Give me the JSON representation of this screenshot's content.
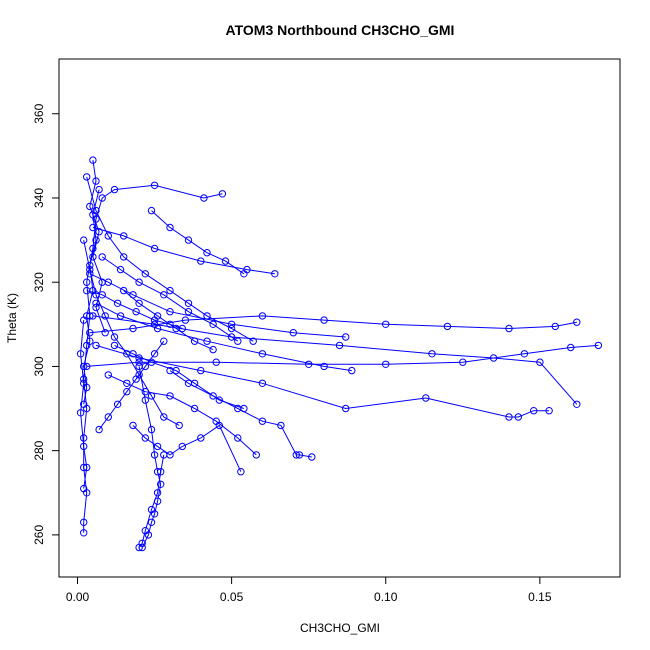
{
  "chart_data": {
    "type": "scatter",
    "mode": "lines+markers",
    "title": "ATOM3 Northbound CH3CHO_GMI",
    "xlabel": "CH3CHO_GMI",
    "ylabel": "Theta (K)",
    "xlim": [
      -0.006,
      0.176
    ],
    "ylim": [
      250,
      373
    ],
    "xticks": [
      0.0,
      0.05,
      0.1,
      0.15
    ],
    "xtick_labels": [
      "0.00",
      "0.05",
      "0.10",
      "0.15"
    ],
    "yticks": [
      260,
      280,
      300,
      320,
      340,
      360
    ],
    "ytick_labels": [
      "260",
      "280",
      "300",
      "320",
      "340",
      "360"
    ],
    "grid": false,
    "legend": "none",
    "marker": "open-circle",
    "series_color": "#0000ff",
    "series": [
      {
        "x": [
          0.002,
          0.002,
          0.003,
          0.002,
          0.002,
          0.003,
          0.002,
          0.003,
          0.004,
          0.003,
          0.005,
          0.006,
          0.008,
          0.012,
          0.025,
          0.041,
          0.047
        ],
        "y": [
          260.5,
          263,
          270,
          276,
          283,
          290,
          297,
          305,
          312,
          320,
          328,
          335,
          340,
          342,
          343,
          340,
          341
        ]
      },
      {
        "x": [
          0.003,
          0.006,
          0.01,
          0.015,
          0.022,
          0.03,
          0.036,
          0.042,
          0.05,
          0.057
        ],
        "y": [
          345,
          337,
          331,
          326,
          322,
          318,
          315,
          312,
          309,
          306
        ]
      },
      {
        "x": [
          0.004,
          0.018,
          0.035,
          0.06,
          0.08,
          0.1,
          0.12,
          0.14,
          0.155,
          0.162
        ],
        "y": [
          308,
          309,
          311,
          312,
          311,
          310,
          309.5,
          309,
          309.5,
          310.5
        ]
      },
      {
        "x": [
          0.003,
          0.02,
          0.045,
          0.075,
          0.1,
          0.125,
          0.145,
          0.16,
          0.169
        ],
        "y": [
          300,
          301,
          301,
          300.5,
          300.5,
          301,
          303,
          304.5,
          305
        ]
      },
      {
        "x": [
          0.005,
          0.025,
          0.05,
          0.085,
          0.115,
          0.135,
          0.15,
          0.162
        ],
        "y": [
          312,
          310,
          307,
          305,
          303,
          302,
          301,
          291
        ]
      },
      {
        "x": [
          0.006,
          0.02,
          0.04,
          0.06,
          0.087,
          0.113,
          0.14,
          0.143,
          0.148,
          0.153
        ],
        "y": [
          305,
          302,
          299,
          296,
          290,
          292.5,
          288,
          288,
          289.5,
          289.5
        ]
      },
      {
        "x": [
          0.002,
          0.004,
          0.006,
          0.009,
          0.012,
          0.016,
          0.02,
          0.024,
          0.028,
          0.033
        ],
        "y": [
          330,
          323,
          317,
          312,
          307,
          303,
          298,
          293,
          288,
          286
        ]
      },
      {
        "x": [
          0.02,
          0.022,
          0.024,
          0.025,
          0.026,
          0.027,
          0.026,
          0.025,
          0.024,
          0.023,
          0.021
        ],
        "y": [
          300,
          292,
          285,
          279,
          275,
          272,
          268,
          265,
          263,
          260,
          257
        ]
      },
      {
        "x": [
          0.02,
          0.021,
          0.022,
          0.024,
          0.026,
          0.027,
          0.028
        ],
        "y": [
          257,
          258,
          261,
          266,
          270,
          275,
          279
        ]
      },
      {
        "x": [
          0.01,
          0.016,
          0.022,
          0.03,
          0.038,
          0.045,
          0.052,
          0.058
        ],
        "y": [
          298,
          296,
          294,
          293,
          290,
          287,
          283,
          279
        ]
      },
      {
        "x": [
          0.03,
          0.036,
          0.044,
          0.052,
          0.06,
          0.066,
          0.071,
          0.072,
          0.076
        ],
        "y": [
          299,
          296,
          293,
          290,
          287,
          286,
          279,
          279,
          278.5
        ]
      },
      {
        "x": [
          0.008,
          0.014,
          0.02,
          0.028,
          0.036,
          0.044,
          0.052
        ],
        "y": [
          326,
          323,
          320,
          317,
          313,
          310,
          306
        ]
      },
      {
        "x": [
          0.005,
          0.015,
          0.025,
          0.04,
          0.055,
          0.064
        ],
        "y": [
          333,
          331,
          328,
          325,
          323,
          322
        ]
      },
      {
        "x": [
          0.003,
          0.008,
          0.013,
          0.019,
          0.025,
          0.03,
          0.034
        ],
        "y": [
          318,
          317,
          315,
          313,
          311,
          310,
          309
        ]
      },
      {
        "x": [
          0.004,
          0.01,
          0.018,
          0.03,
          0.05,
          0.07,
          0.087
        ],
        "y": [
          322,
          320,
          317,
          313,
          310,
          308,
          307
        ]
      },
      {
        "x": [
          0.006,
          0.014,
          0.026,
          0.042,
          0.06,
          0.08,
          0.089
        ],
        "y": [
          315,
          312,
          309,
          306,
          303,
          300,
          299
        ]
      },
      {
        "x": [
          0.012,
          0.018,
          0.024,
          0.032,
          0.038,
          0.046,
          0.054
        ],
        "y": [
          305,
          303,
          301,
          299,
          296,
          292,
          290
        ]
      },
      {
        "x": [
          0.002,
          0.003,
          0.002,
          0.004,
          0.003,
          0.005,
          0.004,
          0.006,
          0.005,
          0.007
        ],
        "y": [
          291,
          295,
          300,
          306,
          312,
          318,
          324,
          330,
          336,
          342
        ]
      },
      {
        "x": [
          0.005,
          0.006,
          0.004,
          0.007,
          0.005,
          0.008,
          0.006,
          0.009
        ],
        "y": [
          349,
          344,
          338,
          332,
          326,
          320,
          314,
          308
        ]
      },
      {
        "x": [
          0.002,
          0.001,
          0.002,
          0.001,
          0.002,
          0.003,
          0.002
        ],
        "y": [
          311,
          303,
          296,
          289,
          281,
          276,
          271
        ]
      },
      {
        "x": [
          0.018,
          0.022,
          0.026,
          0.03,
          0.034,
          0.04,
          0.046,
          0.053
        ],
        "y": [
          286,
          283,
          281,
          279,
          281,
          283,
          286,
          275
        ]
      },
      {
        "x": [
          0.015,
          0.02,
          0.026,
          0.032,
          0.038,
          0.044
        ],
        "y": [
          318,
          315,
          312,
          309,
          306,
          304
        ]
      },
      {
        "x": [
          0.024,
          0.03,
          0.036,
          0.042,
          0.048,
          0.054
        ],
        "y": [
          337,
          333,
          330,
          327,
          325,
          322
        ]
      },
      {
        "x": [
          0.007,
          0.01,
          0.013,
          0.016,
          0.019,
          0.022,
          0.025,
          0.028
        ],
        "y": [
          285,
          288,
          291,
          294,
          297,
          300,
          303,
          306
        ]
      }
    ]
  }
}
